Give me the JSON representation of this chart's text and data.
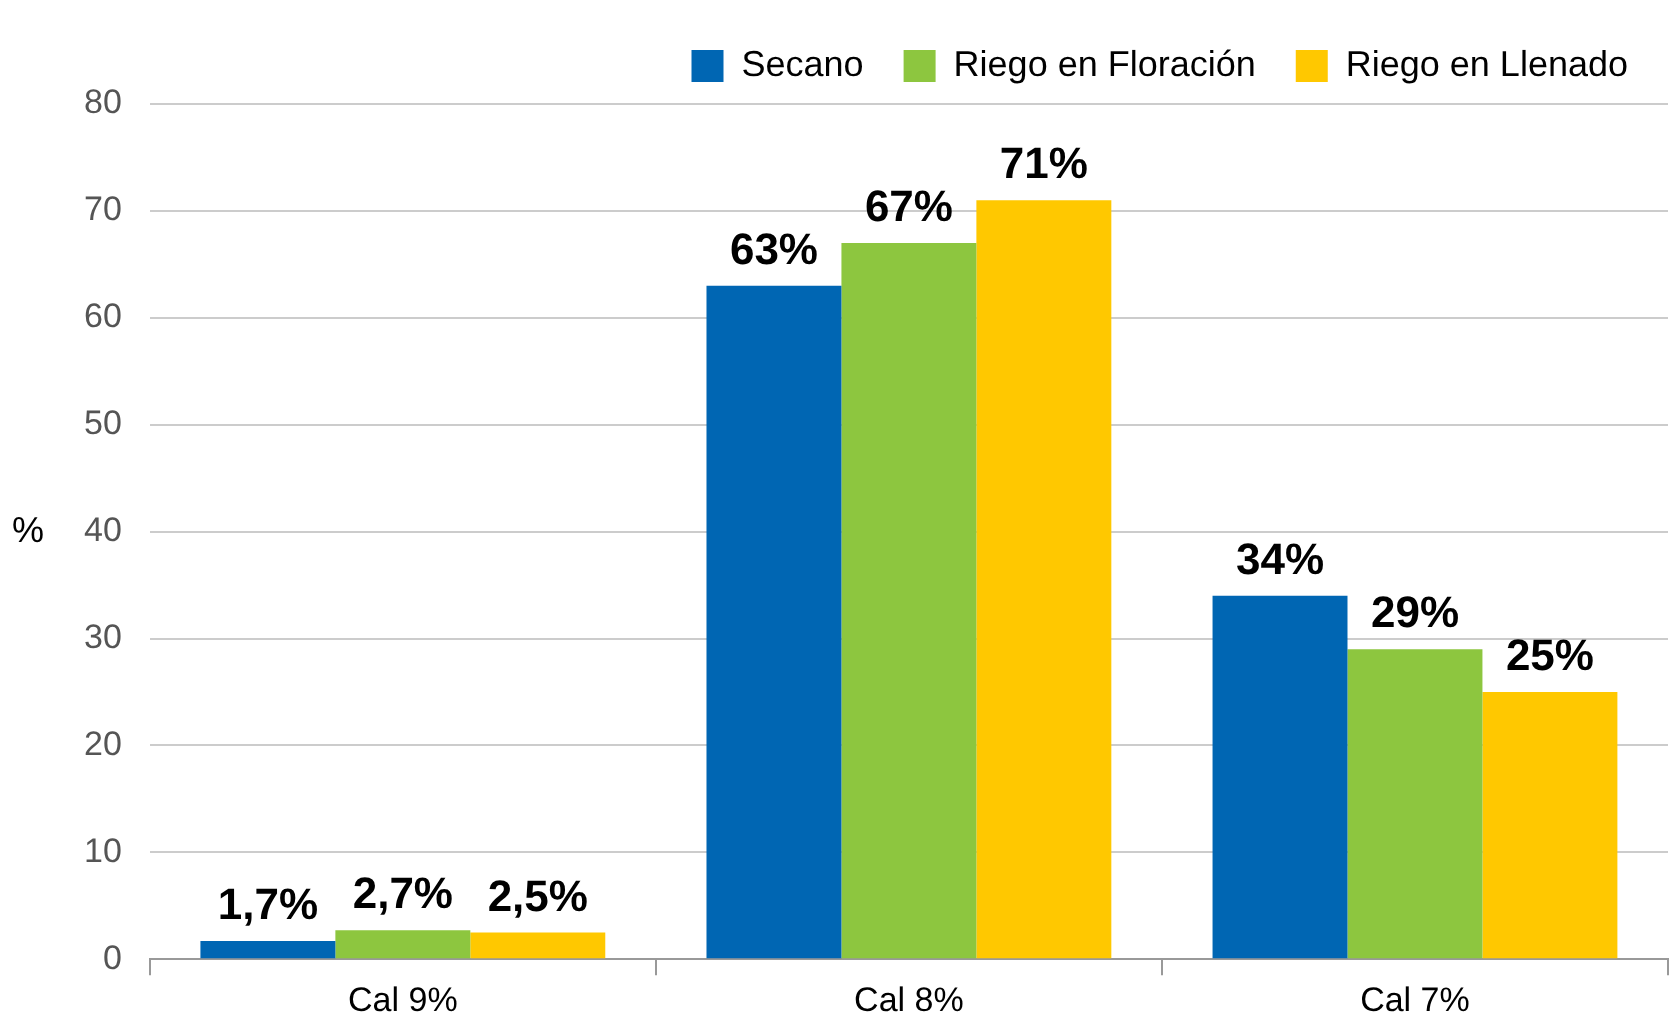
{
  "chart_data": {
    "type": "bar",
    "ylabel": "%",
    "categories": [
      "Cal 9%",
      "Cal 8%",
      "Cal 7%"
    ],
    "series": [
      {
        "name": "Secano",
        "color": "#0066b3",
        "values": [
          1.7,
          63,
          34
        ],
        "value_labels": [
          "1,7%",
          "63%",
          "34%"
        ]
      },
      {
        "name": "Riego en Floración",
        "color": "#8dc63f",
        "values": [
          2.7,
          67,
          29
        ],
        "value_labels": [
          "2,7%",
          "67%",
          "29%"
        ]
      },
      {
        "name": "Riego en Llenado",
        "color": "#ffc800",
        "values": [
          2.5,
          71,
          25
        ],
        "value_labels": [
          "2,5%",
          "71%",
          "25%"
        ]
      }
    ],
    "ylim": [
      0,
      80
    ],
    "yticks": [
      0,
      10,
      20,
      30,
      40,
      50,
      60,
      70,
      80
    ],
    "grid": "y",
    "legend": "top right"
  }
}
